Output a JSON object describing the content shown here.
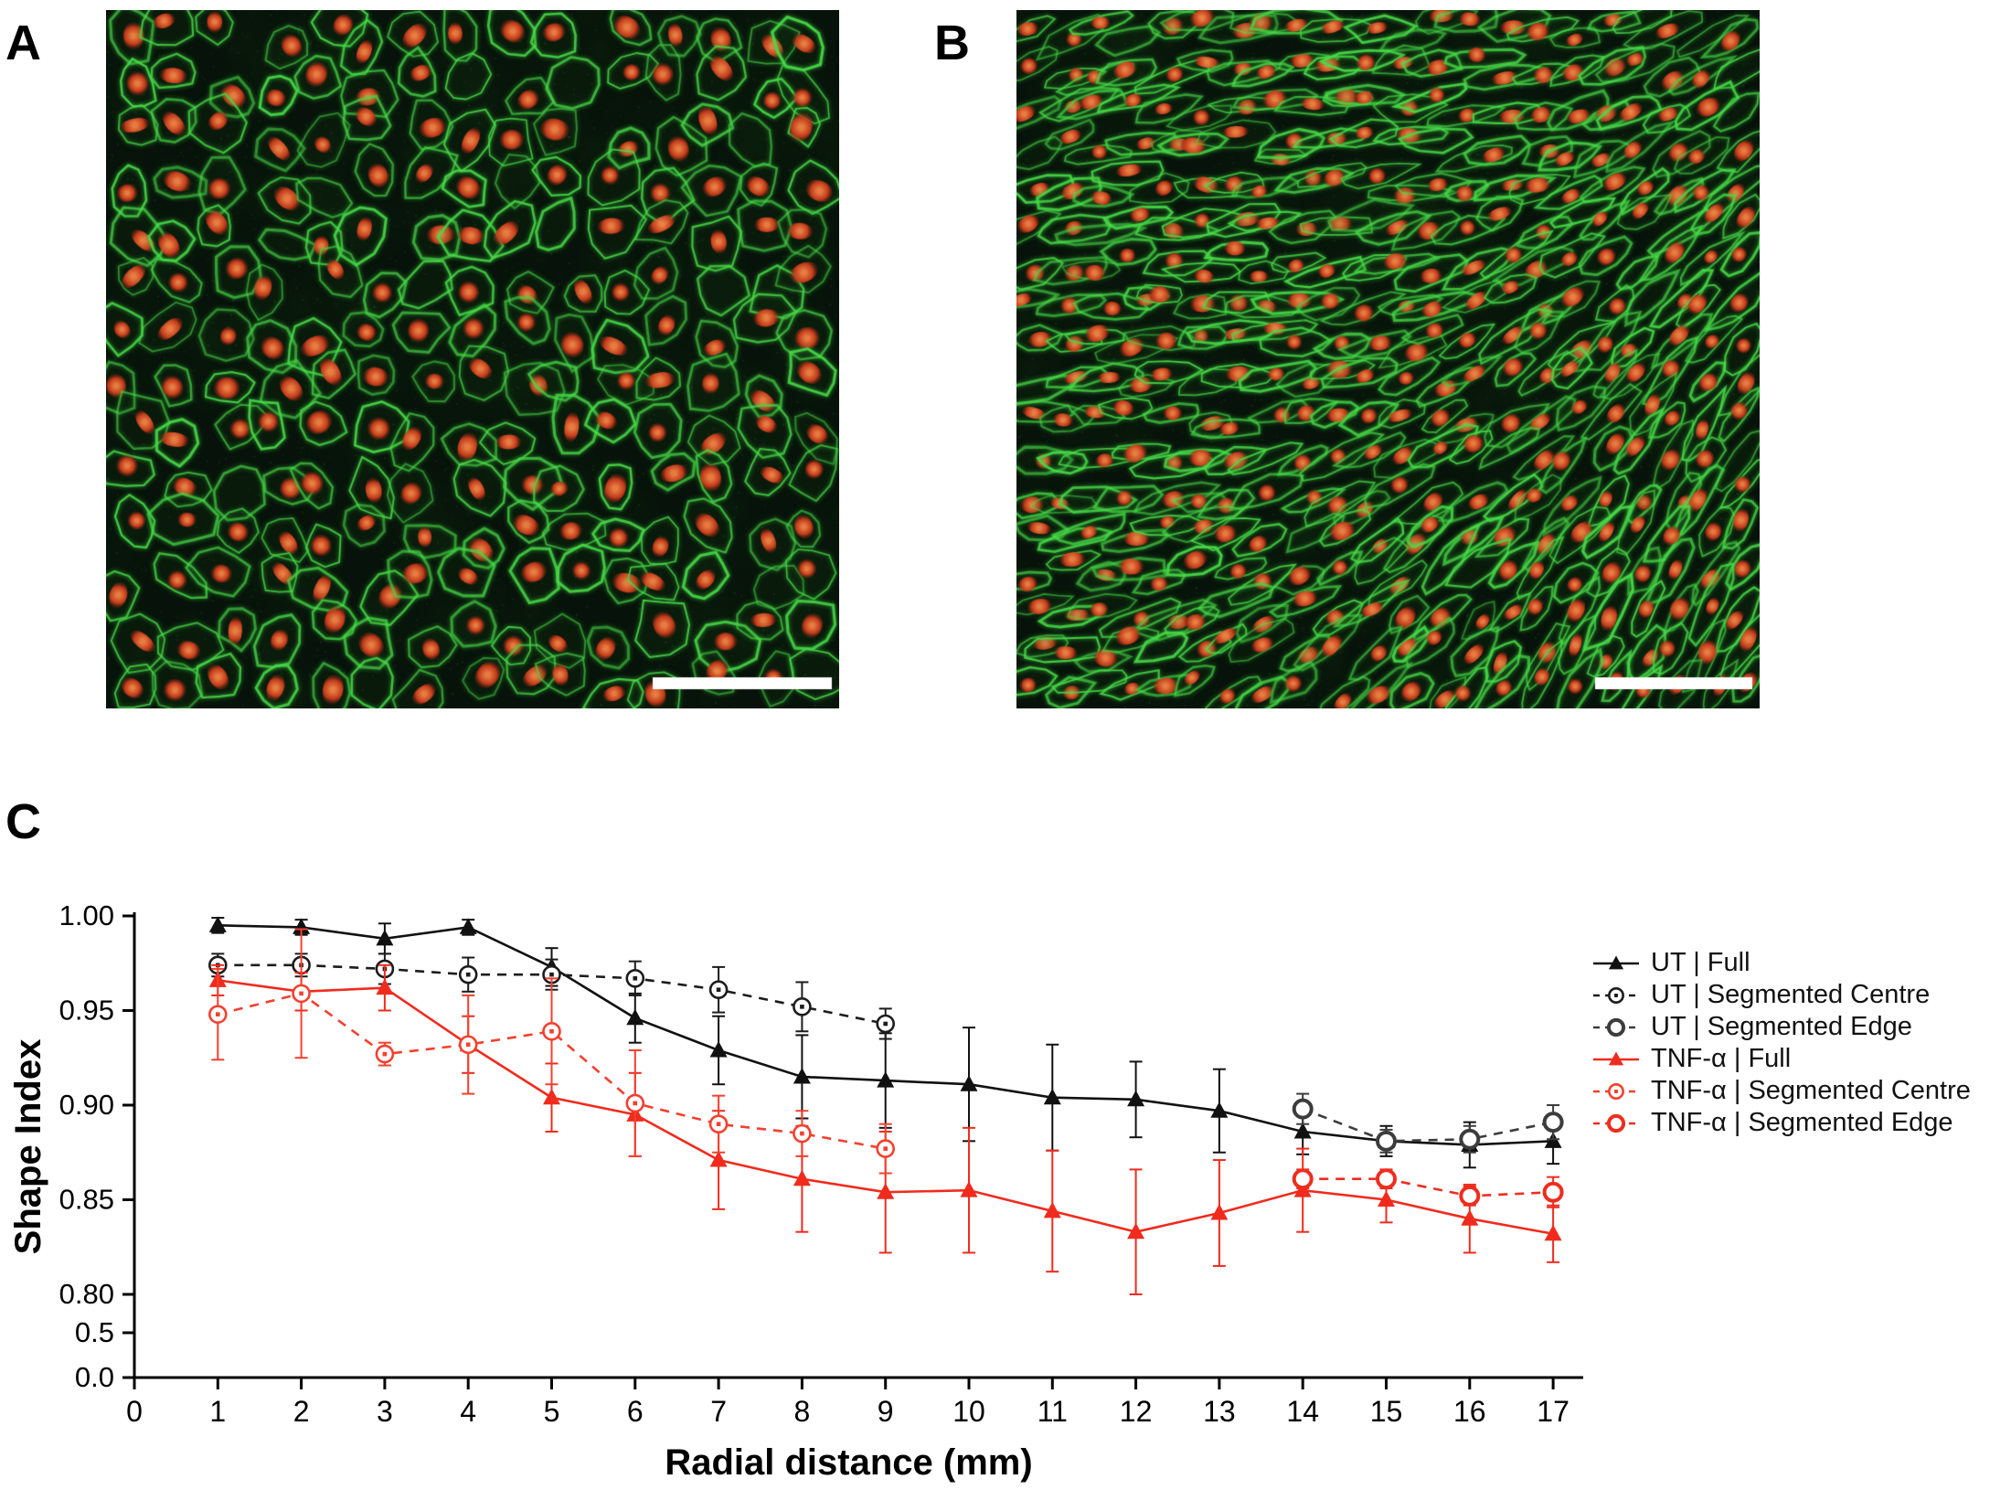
{
  "figure": {
    "panels": [
      {
        "label": "A",
        "content": "fluorescence micrograph, untreated endothelial monolayer, cobblestone morphology, green cell junctions, red nuclei, white scale bar"
      },
      {
        "label": "B",
        "content": "fluorescence micrograph, elongated aligned endothelial cells, green cell junctions, red nuclei, white scale bar"
      },
      {
        "label": "C",
        "content": "shape index versus radial distance line plot"
      }
    ]
  },
  "micrograph_colors": {
    "background": "#07130a",
    "membrane": "#48dc48",
    "nucleus": "#d23c1c",
    "scalebar": "#ffffff"
  },
  "chart_data": {
    "type": "line",
    "title": "",
    "xlabel": "Radial distance (mm)",
    "ylabel": "Shape Index",
    "xlim": [
      0,
      17.5
    ],
    "ylim_main": [
      0.8,
      1.0
    ],
    "broken_axis_ticks": [
      0.0,
      0.5
    ],
    "grid": false,
    "legend_position": "right",
    "xticks": [
      0,
      1,
      2,
      3,
      4,
      5,
      6,
      7,
      8,
      9,
      10,
      11,
      12,
      13,
      14,
      15,
      16,
      17
    ],
    "yticks": [
      {
        "label": "1.00",
        "value": 1.0
      },
      {
        "label": "0.95",
        "value": 0.95
      },
      {
        "label": "0.90",
        "value": 0.9
      },
      {
        "label": "0.85",
        "value": 0.85
      },
      {
        "label": "0.80",
        "value": 0.8
      },
      {
        "label": "0.5",
        "value": 0.5
      },
      {
        "label": "0.0",
        "value": 0.0
      }
    ],
    "series": [
      {
        "id": "ut-full",
        "name": "UT | Full",
        "color": "#111111",
        "line": "solid",
        "marker": "triangle",
        "x": [
          1,
          2,
          3,
          4,
          5,
          6,
          7,
          8,
          9,
          10,
          11,
          12,
          13,
          14,
          15,
          16,
          17
        ],
        "values": [
          0.995,
          0.994,
          0.988,
          0.994,
          0.973,
          0.946,
          0.929,
          0.915,
          0.913,
          0.911,
          0.904,
          0.903,
          0.897,
          0.886,
          0.881,
          0.879,
          0.881
        ],
        "errors": [
          0.004,
          0.004,
          0.008,
          0.004,
          0.01,
          0.013,
          0.018,
          0.022,
          0.025,
          0.03,
          0.028,
          0.02,
          0.022,
          0.012,
          0.008,
          0.012,
          0.012
        ]
      },
      {
        "id": "ut-seg-centre",
        "name": "UT | Segmented Centre",
        "color": "#1c1c1c",
        "line": "dashed",
        "marker": "circle-dot",
        "x": [
          1,
          2,
          3,
          4,
          5,
          6,
          7,
          8,
          9
        ],
        "values": [
          0.974,
          0.974,
          0.972,
          0.969,
          0.969,
          0.967,
          0.961,
          0.952,
          0.943
        ],
        "errors": [
          0.006,
          0.006,
          0.008,
          0.009,
          0.008,
          0.009,
          0.012,
          0.013,
          0.008
        ]
      },
      {
        "id": "ut-seg-edge",
        "name": "UT | Segmented Edge",
        "color": "#3c3c3c",
        "line": "dashed",
        "marker": "circle-open",
        "x": [
          14,
          15,
          16,
          17
        ],
        "values": [
          0.898,
          0.881,
          0.882,
          0.891
        ],
        "errors": [
          0.008,
          0.006,
          0.007,
          0.009
        ]
      },
      {
        "id": "tnf-full",
        "name": "TNF-α | Full",
        "color": "#f02b1d",
        "line": "solid",
        "marker": "triangle",
        "x": [
          1,
          2,
          3,
          4,
          5,
          6,
          7,
          8,
          9,
          10,
          11,
          12,
          13,
          14,
          15,
          16,
          17
        ],
        "values": [
          0.966,
          0.96,
          0.962,
          0.932,
          0.904,
          0.895,
          0.871,
          0.861,
          0.854,
          0.855,
          0.844,
          0.833,
          0.843,
          0.855,
          0.85,
          0.84,
          0.832
        ],
        "errors": [
          0.008,
          0.01,
          0.012,
          0.015,
          0.018,
          0.022,
          0.026,
          0.028,
          0.032,
          0.033,
          0.032,
          0.033,
          0.028,
          0.022,
          0.012,
          0.018,
          0.015
        ]
      },
      {
        "id": "tnf-seg-centre",
        "name": "TNF-α | Segmented Centre",
        "color": "#f4402e",
        "line": "dashed",
        "marker": "circle-dot",
        "x": [
          1,
          2,
          3,
          4,
          5,
          6,
          7,
          8,
          9
        ],
        "values": [
          0.948,
          0.959,
          0.927,
          0.932,
          0.939,
          0.901,
          0.89,
          0.885,
          0.877
        ],
        "errors": [
          0.024,
          0.034,
          0.006,
          0.026,
          0.028,
          0.028,
          0.015,
          0.012,
          0.013
        ]
      },
      {
        "id": "tnf-seg-edge",
        "name": "TNF-α | Segmented Edge",
        "color": "#ee2d1f",
        "line": "dashed",
        "marker": "circle-open",
        "x": [
          14,
          15,
          16,
          17
        ],
        "values": [
          0.861,
          0.861,
          0.852,
          0.854
        ],
        "errors": [
          0.005,
          0.005,
          0.005,
          0.008
        ]
      }
    ]
  }
}
